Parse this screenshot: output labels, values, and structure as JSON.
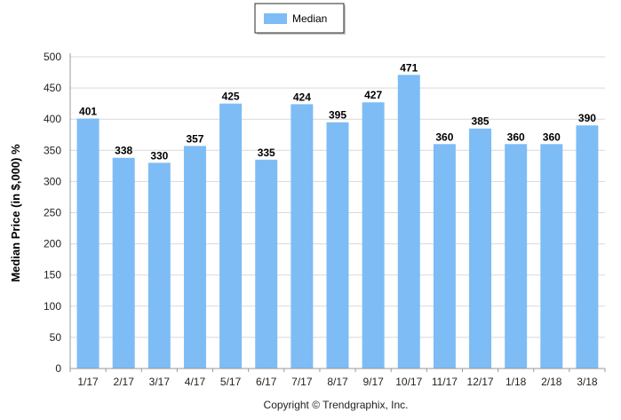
{
  "chart_data": {
    "type": "bar",
    "categories": [
      "1/17",
      "2/17",
      "3/17",
      "4/17",
      "5/17",
      "6/17",
      "7/17",
      "8/17",
      "9/17",
      "10/17",
      "11/17",
      "12/17",
      "1/18",
      "2/18",
      "3/18"
    ],
    "series": [
      {
        "name": "Median",
        "values": [
          401,
          338,
          330,
          357,
          425,
          335,
          424,
          395,
          427,
          471,
          360,
          385,
          360,
          360,
          390
        ]
      }
    ],
    "ylabel": "Median Price (in $,000) %",
    "ylim": [
      0,
      500
    ],
    "yticks": [
      0,
      50,
      100,
      150,
      200,
      250,
      300,
      350,
      400,
      450,
      500
    ],
    "grid": true,
    "legend_position": "top-center",
    "bar_color": "#7ebcf5"
  },
  "credit": "Copyright © Trendgraphix, Inc."
}
